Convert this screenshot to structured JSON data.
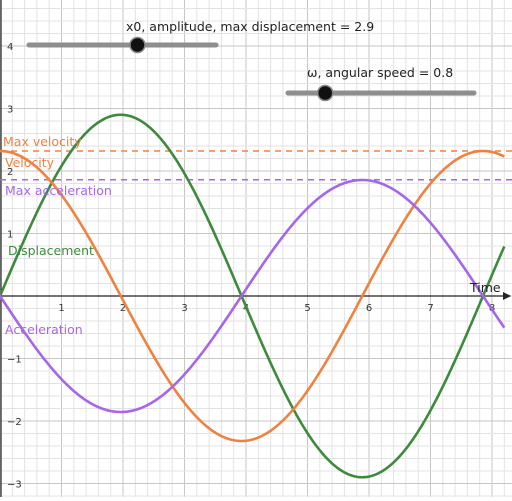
{
  "chart_data": {
    "type": "line",
    "x_axis_label": "Time",
    "xlim": [
      -0.1,
      8.2
    ],
    "ylim": [
      -3.2,
      4.8
    ],
    "x_ticks": [
      1,
      2,
      3,
      4,
      5,
      6,
      7,
      8
    ],
    "y_ticks": [
      -3,
      -2,
      -1,
      1,
      2,
      3,
      4
    ],
    "grid": true,
    "parameters": {
      "amplitude": 2.9,
      "omega": 0.8
    },
    "series": [
      {
        "name": "Displacement",
        "color": "#3d8a3d",
        "formula": "amplitude * sin(omega * t)",
        "x": [
          0,
          1,
          1.96,
          3,
          3.93,
          5,
          5.89,
          7,
          7.85,
          8.2
        ],
        "y": [
          0.0,
          2.08,
          2.9,
          1.96,
          0.0,
          -2.19,
          -2.9,
          -1.83,
          0.0,
          0.81
        ]
      },
      {
        "name": "Velocity",
        "color": "#ef8240",
        "formula": "amplitude * omega * cos(omega * t)",
        "x": [
          0,
          1,
          1.96,
          3,
          3.93,
          5,
          5.89,
          7,
          7.85,
          8.2
        ],
        "y": [
          2.32,
          1.62,
          0.0,
          -1.71,
          -2.32,
          -1.52,
          0.0,
          1.8,
          2.32,
          2.23
        ]
      },
      {
        "name": "Acceleration",
        "color": "#a566e8",
        "formula": "-amplitude * omega^2 * sin(omega * t)",
        "x": [
          0,
          1,
          1.96,
          3,
          3.93,
          5,
          5.89,
          7,
          7.85,
          8.2
        ],
        "y": [
          0.0,
          -1.33,
          -1.86,
          -1.25,
          0.0,
          1.4,
          1.86,
          1.17,
          0.0,
          -0.52
        ]
      }
    ],
    "reference_lines": [
      {
        "name": "Max velocity",
        "y": 2.32,
        "color": "#ef8240"
      },
      {
        "name": "Max acceleration",
        "y": 1.86,
        "color": "#a566e8"
      }
    ],
    "labels": {
      "max_velocity": "Max velocity",
      "velocity": "Velocity",
      "max_acceleration": "Max acceleration",
      "displacement": "Displacement",
      "acceleration": "Acceleration"
    }
  },
  "sliders": {
    "amplitude": {
      "label": "x0, amplitude, max displacement = 2.9",
      "value": 2.9,
      "min": 0,
      "max": 5
    },
    "omega": {
      "label": "ω, angular speed = 0.8",
      "value": 0.8,
      "min": 0.5,
      "max": 2
    }
  }
}
